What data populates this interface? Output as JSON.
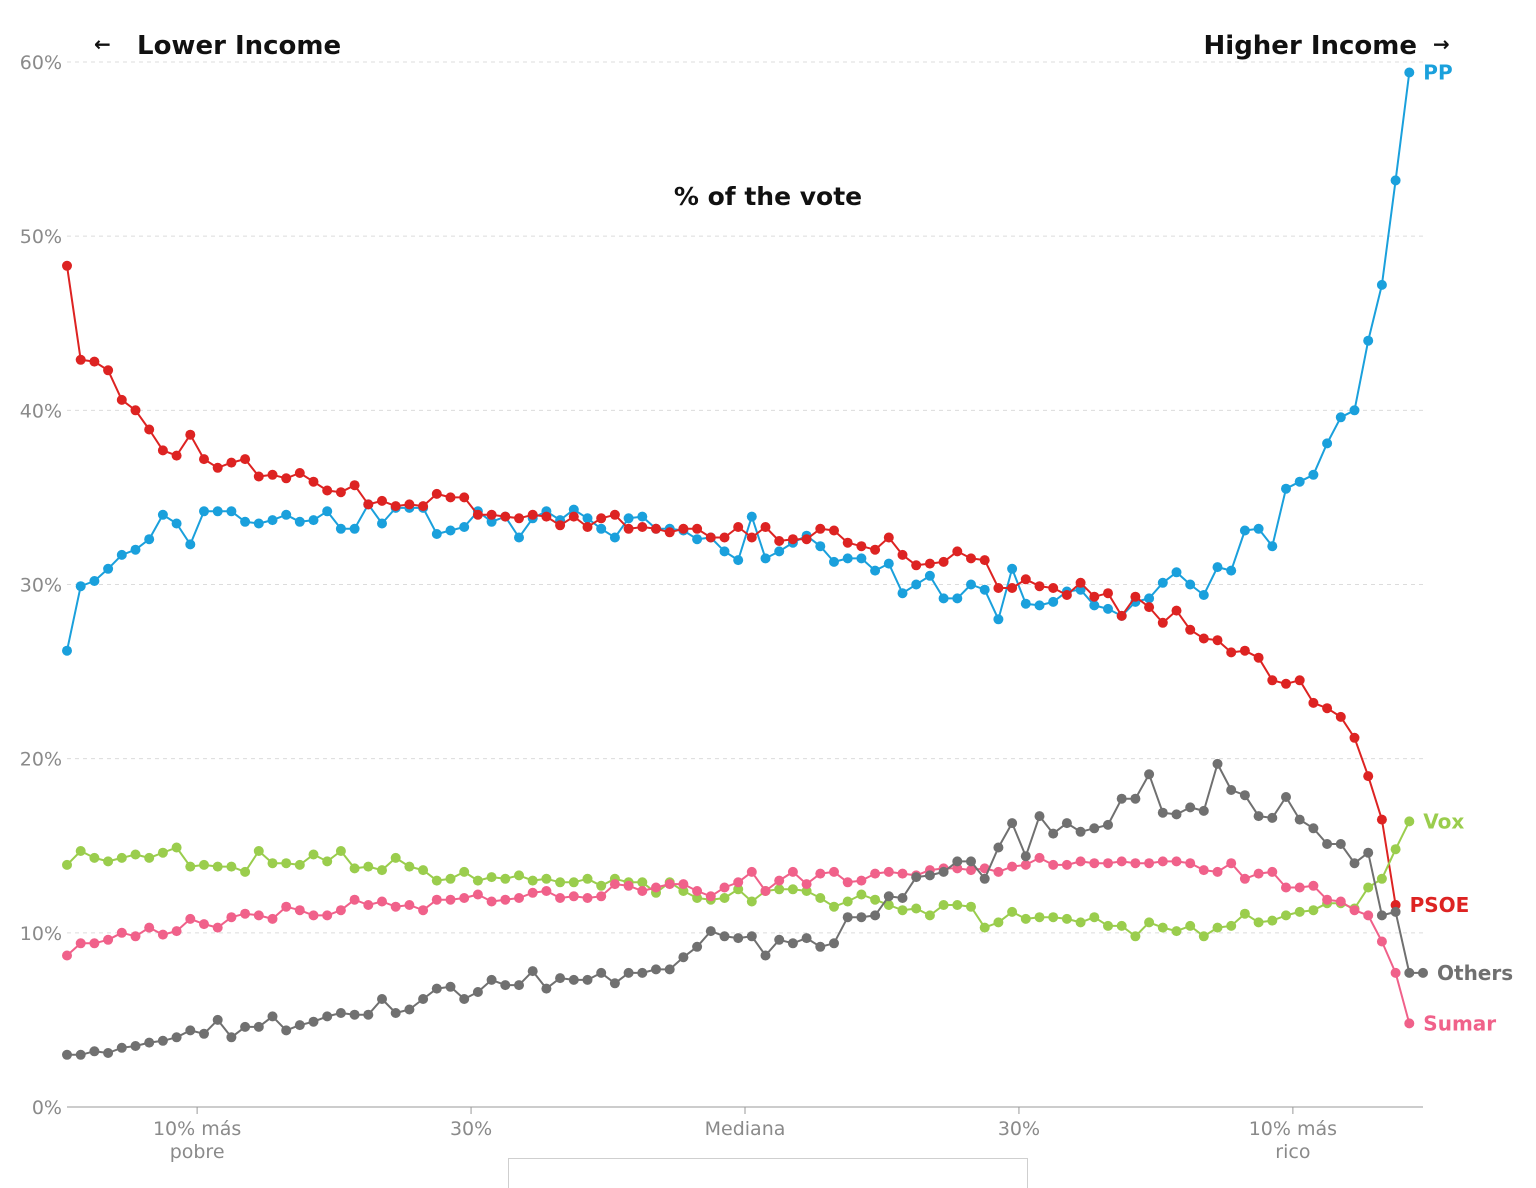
{
  "header": {
    "left_arrow": "←",
    "left_label": "Lower Income",
    "right_label": "Higher Income",
    "right_arrow": "→"
  },
  "chart_data": {
    "type": "line",
    "title": "% of the vote",
    "xlabel": "",
    "ylabel": "",
    "ylim": [
      0,
      60
    ],
    "xlim": [
      1,
      100
    ],
    "grid": true,
    "legend": "inline labels at line ends (right)",
    "y_ticks": [
      {
        "value": 0,
        "label": "0%"
      },
      {
        "value": 10,
        "label": "10%"
      },
      {
        "value": 20,
        "label": "20%"
      },
      {
        "value": 30,
        "label": "30%"
      },
      {
        "value": 40,
        "label": "40%"
      },
      {
        "value": 50,
        "label": "50%"
      },
      {
        "value": 60,
        "label": "60%"
      }
    ],
    "x_ticks": [
      {
        "value": 10.5,
        "lines": [
          "10% más",
          "pobre"
        ]
      },
      {
        "value": 30.5,
        "lines": [
          "30%"
        ]
      },
      {
        "value": 50.5,
        "lines": [
          "Mediana"
        ]
      },
      {
        "value": 70.5,
        "lines": [
          "30%"
        ]
      },
      {
        "value": 90.5,
        "lines": [
          "10% más",
          "rico"
        ]
      }
    ],
    "x": [
      1,
      2,
      3,
      4,
      5,
      6,
      7,
      8,
      9,
      10,
      11,
      12,
      13,
      14,
      15,
      16,
      17,
      18,
      19,
      20,
      21,
      22,
      23,
      24,
      25,
      26,
      27,
      28,
      29,
      30,
      31,
      32,
      33,
      34,
      35,
      36,
      37,
      38,
      39,
      40,
      41,
      42,
      43,
      44,
      45,
      46,
      47,
      48,
      49,
      50,
      51,
      52,
      53,
      54,
      55,
      56,
      57,
      58,
      59,
      60,
      61,
      62,
      63,
      64,
      65,
      66,
      67,
      68,
      69,
      70,
      71,
      72,
      73,
      74,
      75,
      76,
      77,
      78,
      79,
      80,
      81,
      82,
      83,
      84,
      85,
      86,
      87,
      88,
      89,
      90,
      91,
      92,
      93,
      94,
      95,
      96,
      97,
      98,
      99,
      100
    ],
    "series": [
      {
        "name": "PP",
        "color": "#1aa0dc",
        "values": [
          26.2,
          29.9,
          30.2,
          30.9,
          31.7,
          32.0,
          32.6,
          34.0,
          33.5,
          32.3,
          34.2,
          34.2,
          34.2,
          33.6,
          33.5,
          33.7,
          34.0,
          33.6,
          33.7,
          34.2,
          33.2,
          33.2,
          34.6,
          33.5,
          34.4,
          34.4,
          34.4,
          32.9,
          33.1,
          33.3,
          34.2,
          33.6,
          33.9,
          32.7,
          33.8,
          34.2,
          33.7,
          34.3,
          33.8,
          33.2,
          32.7,
          33.8,
          33.9,
          33.2,
          33.2,
          33.1,
          32.6,
          32.7,
          31.9,
          31.4,
          33.9,
          31.5,
          31.9,
          32.4,
          32.8,
          32.2,
          31.3,
          31.5,
          31.5,
          30.8,
          31.2,
          29.5,
          30.0,
          30.5,
          29.2,
          29.2,
          30.0,
          29.7,
          28.0,
          30.9,
          28.9,
          28.8,
          29.0,
          29.6,
          29.7,
          28.8,
          28.6,
          28.2,
          29.0,
          29.2,
          30.1,
          30.7,
          30.0,
          29.4,
          31.0,
          30.8,
          33.1,
          33.2,
          32.2,
          35.5,
          35.9,
          36.3,
          38.1,
          39.6,
          40.0,
          44.0,
          47.2,
          53.2,
          59.4,
          null
        ]
      },
      {
        "name": "PSOE",
        "color": "#dd2322",
        "values": [
          48.3,
          42.9,
          42.8,
          42.3,
          40.6,
          40.0,
          38.9,
          37.7,
          37.4,
          38.6,
          37.2,
          36.7,
          37.0,
          37.2,
          36.2,
          36.3,
          36.1,
          36.4,
          35.9,
          35.4,
          35.3,
          35.7,
          34.6,
          34.8,
          34.5,
          34.6,
          34.5,
          35.2,
          35.0,
          35.0,
          34.0,
          34.0,
          33.9,
          33.8,
          34.0,
          33.9,
          33.4,
          33.9,
          33.3,
          33.8,
          34.0,
          33.2,
          33.3,
          33.2,
          33.0,
          33.2,
          33.2,
          32.7,
          32.7,
          33.3,
          32.7,
          33.3,
          32.5,
          32.6,
          32.6,
          33.2,
          33.1,
          32.4,
          32.2,
          32.0,
          32.7,
          31.7,
          31.1,
          31.2,
          31.3,
          31.9,
          31.5,
          31.4,
          29.8,
          29.8,
          30.3,
          29.9,
          29.8,
          29.4,
          30.1,
          29.3,
          29.5,
          28.2,
          29.3,
          28.7,
          27.8,
          28.5,
          27.4,
          26.9,
          26.8,
          26.1,
          26.2,
          25.8,
          24.5,
          24.3,
          24.5,
          23.2,
          22.9,
          22.4,
          21.2,
          19.0,
          16.5,
          11.6,
          null,
          null
        ]
      },
      {
        "name": "Vox",
        "color": "#9acd4d",
        "values": [
          13.9,
          14.7,
          14.3,
          14.1,
          14.3,
          14.5,
          14.3,
          14.6,
          14.9,
          13.8,
          13.9,
          13.8,
          13.8,
          13.5,
          14.7,
          14.0,
          14.0,
          13.9,
          14.5,
          14.1,
          14.7,
          13.7,
          13.8,
          13.6,
          14.3,
          13.8,
          13.6,
          13.0,
          13.1,
          13.5,
          13.0,
          13.2,
          13.1,
          13.3,
          13.0,
          13.1,
          12.9,
          12.9,
          13.1,
          12.7,
          13.1,
          12.9,
          12.9,
          12.3,
          12.9,
          12.4,
          12.0,
          11.9,
          12.0,
          12.5,
          11.8,
          12.4,
          12.5,
          12.5,
          12.4,
          12.0,
          11.5,
          11.8,
          12.2,
          11.9,
          11.6,
          11.3,
          11.4,
          11.0,
          11.6,
          11.6,
          11.5,
          10.3,
          10.6,
          11.2,
          10.8,
          10.9,
          10.9,
          10.8,
          10.6,
          10.9,
          10.4,
          10.4,
          9.8,
          10.6,
          10.3,
          10.1,
          10.4,
          9.8,
          10.3,
          10.4,
          11.1,
          10.6,
          10.7,
          11.0,
          11.2,
          11.3,
          11.7,
          11.7,
          11.4,
          12.6,
          13.1,
          14.8,
          16.4,
          null
        ]
      },
      {
        "name": "Sumar",
        "color": "#f0618a",
        "values": [
          8.7,
          9.4,
          9.4,
          9.6,
          10.0,
          9.8,
          10.3,
          9.9,
          10.1,
          10.8,
          10.5,
          10.3,
          10.9,
          11.1,
          11.0,
          10.8,
          11.5,
          11.3,
          11.0,
          11.0,
          11.3,
          11.9,
          11.6,
          11.8,
          11.5,
          11.6,
          11.3,
          11.9,
          11.9,
          12.0,
          12.2,
          11.8,
          11.9,
          12.0,
          12.3,
          12.4,
          12.0,
          12.1,
          12.0,
          12.1,
          12.8,
          12.7,
          12.4,
          12.6,
          12.8,
          12.8,
          12.4,
          12.1,
          12.6,
          12.9,
          13.5,
          12.4,
          13.0,
          13.5,
          12.8,
          13.4,
          13.5,
          12.9,
          13.0,
          13.4,
          13.5,
          13.4,
          13.3,
          13.6,
          13.7,
          13.7,
          13.6,
          13.7,
          13.5,
          13.8,
          13.9,
          14.3,
          13.9,
          13.9,
          14.1,
          14.0,
          14.0,
          14.1,
          14.0,
          14.0,
          14.1,
          14.1,
          14.0,
          13.6,
          13.5,
          14.0,
          13.1,
          13.4,
          13.5,
          12.6,
          12.6,
          12.7,
          11.9,
          11.8,
          11.3,
          11.0,
          9.5,
          7.7,
          4.8,
          null
        ]
      },
      {
        "name": "Others",
        "color": "#707070",
        "values": [
          3.0,
          3.0,
          3.2,
          3.1,
          3.4,
          3.5,
          3.7,
          3.8,
          4.0,
          4.4,
          4.2,
          5.0,
          4.0,
          4.6,
          4.6,
          5.2,
          4.4,
          4.7,
          4.9,
          5.2,
          5.4,
          5.3,
          5.3,
          6.2,
          5.4,
          5.6,
          6.2,
          6.8,
          6.9,
          6.2,
          6.6,
          7.3,
          7.0,
          7.0,
          7.8,
          6.8,
          7.4,
          7.3,
          7.3,
          7.7,
          7.1,
          7.7,
          7.7,
          7.9,
          7.9,
          8.6,
          9.2,
          10.1,
          9.8,
          9.7,
          9.8,
          8.7,
          9.6,
          9.4,
          9.7,
          9.2,
          9.4,
          10.9,
          10.9,
          11.0,
          12.1,
          12.0,
          13.2,
          13.3,
          13.5,
          14.1,
          14.1,
          13.1,
          14.9,
          16.3,
          14.4,
          16.7,
          15.7,
          16.3,
          15.8,
          16.0,
          16.2,
          17.7,
          17.7,
          19.1,
          16.9,
          16.8,
          17.2,
          17.0,
          19.7,
          18.2,
          17.9,
          16.7,
          16.6,
          17.8,
          16.5,
          16.0,
          15.1,
          15.1,
          14.0,
          14.6,
          11.0,
          11.2,
          7.7,
          7.7
        ]
      }
    ]
  }
}
